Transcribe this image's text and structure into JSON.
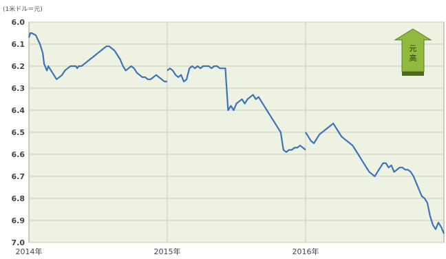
{
  "chart_data": {
    "type": "line",
    "unit_label": "(1米ドル＝元)",
    "ylim": [
      6.0,
      7.0
    ],
    "y_inverted": true,
    "y_ticks": [
      "6.0",
      "6.1",
      "6.2",
      "6.3",
      "6.4",
      "6.5",
      "6.6",
      "6.7",
      "6.8",
      "6.9",
      "7.0"
    ],
    "x_ticks": [
      "2014年",
      "2015年",
      "2016年"
    ],
    "grid": true,
    "arrow_label": "元高",
    "colors": {
      "line": "#3b73b9",
      "plot_bg": "#eef2e3",
      "grid": "#c9cdb8",
      "arrow": "#8fba3e"
    },
    "series": [
      {
        "x": [
          0.0,
          0.01,
          0.02,
          0.05,
          0.08,
          0.1,
          0.11,
          0.13,
          0.14,
          0.16,
          0.18,
          0.2,
          0.22,
          0.24,
          0.26,
          0.28,
          0.3,
          0.32,
          0.34,
          0.35,
          0.36,
          0.38,
          0.4,
          0.42,
          0.44,
          0.46,
          0.48,
          0.5,
          0.52,
          0.54,
          0.56,
          0.58,
          0.6,
          0.62,
          0.64,
          0.66,
          0.68,
          0.7,
          0.72,
          0.74,
          0.76,
          0.78,
          0.8,
          0.82,
          0.84,
          0.86,
          0.88,
          0.9,
          0.92,
          0.94,
          0.96,
          0.98,
          1.0
        ],
        "values": [
          6.07,
          6.05,
          6.05,
          6.06,
          6.1,
          6.14,
          6.19,
          6.22,
          6.2,
          6.22,
          6.24,
          6.26,
          6.25,
          6.24,
          6.22,
          6.21,
          6.2,
          6.2,
          6.2,
          6.21,
          6.2,
          6.2,
          6.19,
          6.18,
          6.17,
          6.16,
          6.15,
          6.14,
          6.13,
          6.12,
          6.11,
          6.11,
          6.12,
          6.13,
          6.15,
          6.17,
          6.2,
          6.22,
          6.21,
          6.2,
          6.21,
          6.23,
          6.24,
          6.25,
          6.25,
          6.26,
          6.26,
          6.25,
          6.24,
          6.25,
          6.26,
          6.27,
          6.27
        ]
      },
      {
        "x": [
          1.0,
          1.02,
          1.04,
          1.06,
          1.08,
          1.1,
          1.12,
          1.14,
          1.16,
          1.18,
          1.2,
          1.22,
          1.24,
          1.26,
          1.28,
          1.3,
          1.32,
          1.34,
          1.36,
          1.38,
          1.4,
          1.42,
          1.44,
          1.46,
          1.48,
          1.5,
          1.52,
          1.54,
          1.56,
          1.58,
          1.6,
          1.62,
          1.64,
          1.66,
          1.68,
          1.7,
          1.72,
          1.74,
          1.76,
          1.78,
          1.8,
          1.82,
          1.84,
          1.86,
          1.88,
          1.9,
          1.92,
          1.94,
          1.96,
          1.98,
          2.0
        ],
        "values": [
          6.22,
          6.21,
          6.22,
          6.24,
          6.25,
          6.24,
          6.27,
          6.26,
          6.21,
          6.2,
          6.21,
          6.2,
          6.21,
          6.2,
          6.2,
          6.2,
          6.21,
          6.2,
          6.2,
          6.21,
          6.21,
          6.21,
          6.4,
          6.38,
          6.4,
          6.37,
          6.36,
          6.35,
          6.37,
          6.35,
          6.34,
          6.33,
          6.35,
          6.34,
          6.36,
          6.38,
          6.4,
          6.42,
          6.44,
          6.46,
          6.48,
          6.5,
          6.58,
          6.59,
          6.58,
          6.58,
          6.57,
          6.57,
          6.56,
          6.57,
          6.58
        ]
      },
      {
        "x": [
          2.0,
          2.02,
          2.04,
          2.06,
          2.08,
          2.1,
          2.12,
          2.14,
          2.16,
          2.18,
          2.2,
          2.22,
          2.24,
          2.26,
          2.28,
          2.3,
          2.32,
          2.34,
          2.36,
          2.38,
          2.4,
          2.42,
          2.44,
          2.46,
          2.48,
          2.5,
          2.52,
          2.54,
          2.56,
          2.58,
          2.6,
          2.62,
          2.64,
          2.66,
          2.68,
          2.7,
          2.72,
          2.74,
          2.76,
          2.78,
          2.8,
          2.82,
          2.84,
          2.86,
          2.88,
          2.9,
          2.92,
          2.94,
          2.96,
          2.98,
          3.0
        ],
        "values": [
          6.5,
          6.52,
          6.54,
          6.55,
          6.53,
          6.51,
          6.5,
          6.49,
          6.48,
          6.47,
          6.46,
          6.48,
          6.5,
          6.52,
          6.53,
          6.54,
          6.55,
          6.56,
          6.58,
          6.6,
          6.62,
          6.64,
          6.66,
          6.68,
          6.69,
          6.7,
          6.68,
          6.66,
          6.64,
          6.64,
          6.66,
          6.65,
          6.68,
          6.67,
          6.66,
          6.66,
          6.67,
          6.67,
          6.68,
          6.7,
          6.73,
          6.76,
          6.79,
          6.8,
          6.82,
          6.88,
          6.92,
          6.94,
          6.91,
          6.93,
          6.96
        ]
      }
    ]
  }
}
